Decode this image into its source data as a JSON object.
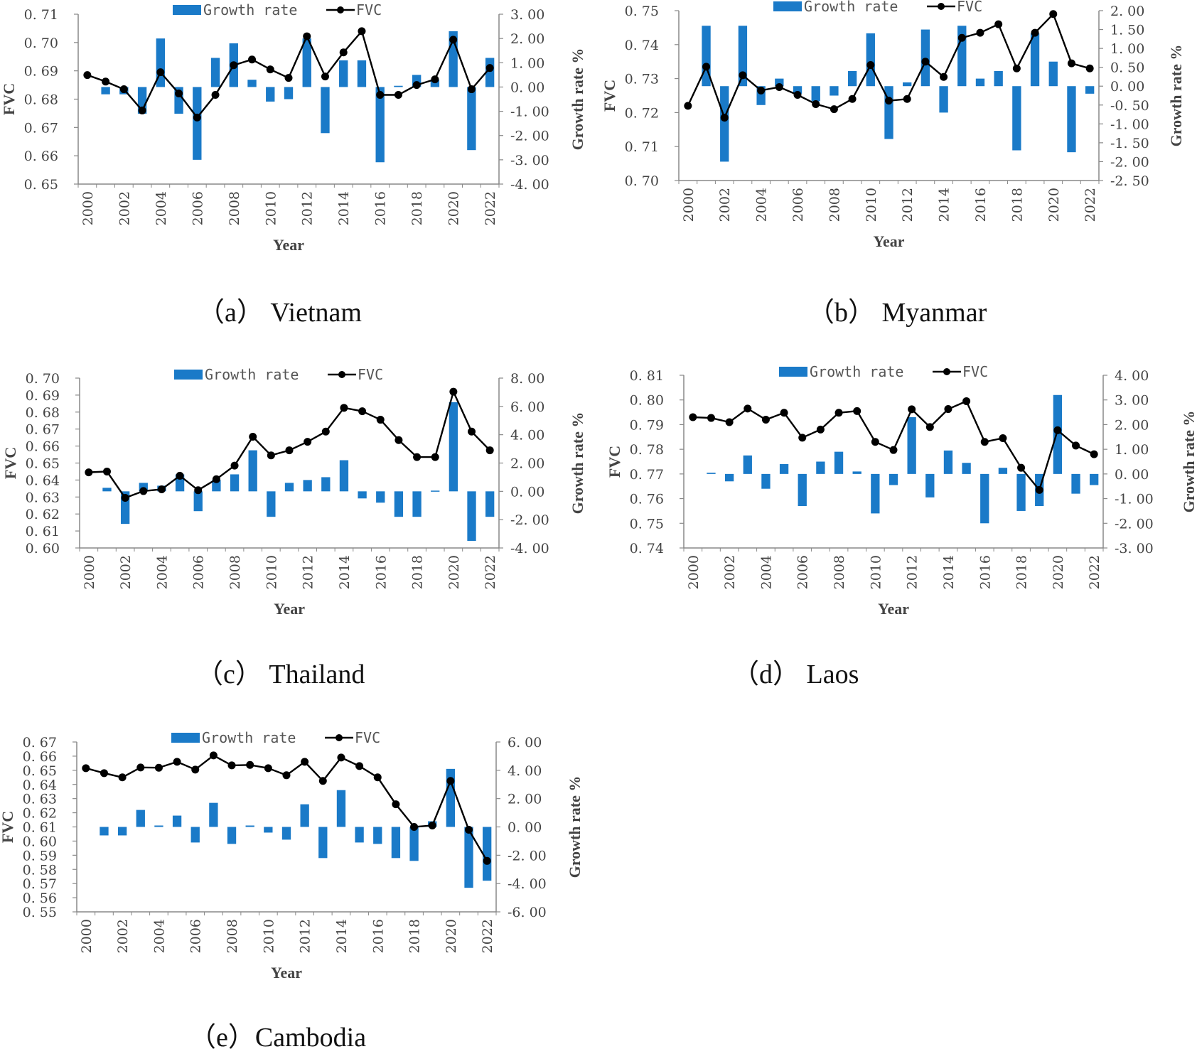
{
  "figure": {
    "legend_bar_label": "Growth rate",
    "legend_line_label": "FVC",
    "bar_color": "#1a7ac8",
    "line_color": "#000000"
  },
  "chart_data": [
    {
      "type": "bar+line",
      "caption": "（a） Vietnam",
      "xlabel": "Year",
      "ylabel": "FVC",
      "y2label": "Growth rate %",
      "x": [
        2000,
        2001,
        2002,
        2003,
        2004,
        2005,
        2006,
        2007,
        2008,
        2009,
        2010,
        2011,
        2012,
        2013,
        2014,
        2015,
        2016,
        2017,
        2018,
        2019,
        2020,
        2021,
        2022
      ],
      "x_ticks": [
        "2000",
        "2002",
        "2004",
        "2006",
        "2008",
        "2010",
        "2012",
        "2014",
        "2016",
        "2018",
        "2020",
        "2022"
      ],
      "ylim": [
        0.65,
        0.71
      ],
      "y_ticks": [
        "0. 65",
        "0. 66",
        "0. 67",
        "0. 68",
        "0. 69",
        "0. 70",
        "0. 71"
      ],
      "y2lim": [
        -4.0,
        3.0
      ],
      "y2_ticks": [
        "-4. 00",
        "-3. 00",
        "-2. 00",
        "-1. 00",
        "0. 00",
        "1. 00",
        "2. 00",
        "3. 00"
      ],
      "series": [
        {
          "name": "Growth rate",
          "type": "bar",
          "values": [
            null,
            -0.3,
            -0.3,
            -1.1,
            2.0,
            -1.1,
            -3.0,
            1.2,
            1.8,
            0.3,
            -0.6,
            -0.5,
            2.0,
            -1.9,
            1.1,
            1.1,
            -3.1,
            0.05,
            0.5,
            0.3,
            2.3,
            -2.6,
            1.2
          ]
        },
        {
          "name": "FVC",
          "type": "line",
          "values": [
            0.6885,
            0.6862,
            0.6835,
            0.676,
            0.6895,
            0.682,
            0.6735,
            0.6815,
            0.692,
            0.694,
            0.6905,
            0.6875,
            0.7022,
            0.688,
            0.6965,
            0.704,
            0.6815,
            0.6815,
            0.685,
            0.687,
            0.701,
            0.6835,
            0.691
          ]
        }
      ]
    },
    {
      "type": "bar+line",
      "caption": "（b） Myanmar",
      "xlabel": "Year",
      "ylabel": "FVC",
      "y2label": "Growth rate %",
      "x": [
        2000,
        2001,
        2002,
        2003,
        2004,
        2005,
        2006,
        2007,
        2008,
        2009,
        2010,
        2011,
        2012,
        2013,
        2014,
        2015,
        2016,
        2017,
        2018,
        2019,
        2020,
        2021,
        2022
      ],
      "x_ticks": [
        "2000",
        "2002",
        "2004",
        "2006",
        "2008",
        "2010",
        "2012",
        "2014",
        "2016",
        "2018",
        "2020",
        "2022"
      ],
      "ylim": [
        0.7,
        0.75
      ],
      "y_ticks": [
        "0. 70",
        "0. 71",
        "0. 72",
        "0. 73",
        "0. 74",
        "0. 75"
      ],
      "y2lim": [
        -2.5,
        2.0
      ],
      "y2_ticks": [
        "-2. 50",
        "-2. 00",
        "-1. 50",
        "-1. 00",
        "-0. 50",
        "0. 00",
        "0. 50",
        "1. 00",
        "1. 50",
        "2. 00"
      ],
      "series": [
        {
          "name": "Growth rate",
          "type": "bar",
          "values": [
            null,
            1.6,
            -2.0,
            1.6,
            -0.5,
            0.2,
            -0.2,
            -0.4,
            -0.25,
            0.4,
            1.4,
            -1.4,
            0.1,
            1.5,
            -0.7,
            1.6,
            0.2,
            0.4,
            -1.7,
            1.4,
            0.65,
            -1.75,
            -0.2
          ]
        },
        {
          "name": "FVC",
          "type": "line",
          "values": [
            0.722,
            0.7335,
            0.7185,
            0.731,
            0.7265,
            0.7275,
            0.7252,
            0.7225,
            0.721,
            0.724,
            0.734,
            0.7235,
            0.724,
            0.735,
            0.7305,
            0.742,
            0.7435,
            0.746,
            0.733,
            0.7435,
            0.749,
            0.7345,
            0.733
          ]
        }
      ]
    },
    {
      "type": "bar+line",
      "caption": "（c） Thailand",
      "xlabel": "Year",
      "ylabel": "FVC",
      "y2label": "Growth rate %",
      "x": [
        2000,
        2001,
        2002,
        2003,
        2004,
        2005,
        2006,
        2007,
        2008,
        2009,
        2010,
        2011,
        2012,
        2013,
        2014,
        2015,
        2016,
        2017,
        2018,
        2019,
        2020,
        2021,
        2022
      ],
      "x_ticks": [
        "2000",
        "2002",
        "2004",
        "2006",
        "2008",
        "2010",
        "2012",
        "2014",
        "2016",
        "2018",
        "2020",
        "2022"
      ],
      "ylim": [
        0.6,
        0.7
      ],
      "y_ticks": [
        "0. 60",
        "0. 61",
        "0. 62",
        "0. 63",
        "0. 64",
        "0. 65",
        "0. 66",
        "0. 67",
        "0. 68",
        "0. 69",
        "0. 70"
      ],
      "y2lim": [
        -4.0,
        8.0
      ],
      "y2_ticks": [
        "-4. 00",
        "-2. 00",
        "0. 00",
        "2. 00",
        "4. 00",
        "6. 00",
        "8. 00"
      ],
      "series": [
        {
          "name": "Growth rate",
          "type": "bar",
          "values": [
            null,
            0.25,
            -2.3,
            0.6,
            0.4,
            1.2,
            -1.4,
            0.8,
            1.2,
            2.9,
            -1.8,
            0.6,
            0.8,
            1.0,
            2.2,
            -0.5,
            -0.8,
            -1.8,
            -1.8,
            0.05,
            6.3,
            -3.5,
            -1.8
          ]
        },
        {
          "name": "FVC",
          "type": "line",
          "values": [
            0.6445,
            0.645,
            0.6295,
            0.6335,
            0.6345,
            0.6425,
            0.634,
            0.6405,
            0.6485,
            0.6655,
            0.6545,
            0.6575,
            0.6625,
            0.6685,
            0.6825,
            0.6805,
            0.6755,
            0.6635,
            0.6535,
            0.6535,
            0.692,
            0.6685,
            0.6575
          ]
        }
      ]
    },
    {
      "type": "bar+line",
      "caption": "（d） Laos",
      "xlabel": "Year",
      "ylabel": "FVC",
      "y2label": "Growth rate %",
      "x": [
        2000,
        2001,
        2002,
        2003,
        2004,
        2005,
        2006,
        2007,
        2008,
        2009,
        2010,
        2011,
        2012,
        2013,
        2014,
        2015,
        2016,
        2017,
        2018,
        2019,
        2020,
        2021,
        2022
      ],
      "x_ticks": [
        "2000",
        "2002",
        "2004",
        "2006",
        "2008",
        "2010",
        "2012",
        "2014",
        "2016",
        "2018",
        "2020",
        "2022"
      ],
      "ylim": [
        0.74,
        0.81
      ],
      "y_ticks": [
        "0. 74",
        "0. 75",
        "0. 76",
        "0. 77",
        "0. 78",
        "0. 79",
        "0. 80",
        "0. 81"
      ],
      "y2lim": [
        -3.0,
        4.0
      ],
      "y2_ticks": [
        "-3. 00",
        "-2. 00",
        "-1. 00",
        "0. 00",
        "1. 00",
        "2. 00",
        "3. 00",
        "4. 00"
      ],
      "series": [
        {
          "name": "Growth rate",
          "type": "bar",
          "values": [
            null,
            0.05,
            -0.3,
            0.75,
            -0.6,
            0.4,
            -1.3,
            0.5,
            0.9,
            0.1,
            -1.6,
            -0.45,
            2.3,
            -0.95,
            0.95,
            0.45,
            -2.0,
            0.25,
            -1.5,
            -1.3,
            3.2,
            -0.8,
            -0.45
          ]
        },
        {
          "name": "FVC",
          "type": "line",
          "values": [
            0.793,
            0.7927,
            0.791,
            0.7965,
            0.792,
            0.7948,
            0.7847,
            0.788,
            0.7948,
            0.7955,
            0.783,
            0.7797,
            0.7962,
            0.789,
            0.7963,
            0.7995,
            0.783,
            0.7845,
            0.7725,
            0.7635,
            0.7877,
            0.7815,
            0.778
          ]
        }
      ]
    },
    {
      "type": "bar+line",
      "caption": "（e）Cambodia",
      "xlabel": "Year",
      "ylabel": "FVC",
      "y2label": "Growth rate %",
      "x": [
        2000,
        2001,
        2002,
        2003,
        2004,
        2005,
        2006,
        2007,
        2008,
        2009,
        2010,
        2011,
        2012,
        2013,
        2014,
        2015,
        2016,
        2017,
        2018,
        2019,
        2020,
        2021,
        2022
      ],
      "x_ticks": [
        "2000",
        "2002",
        "2004",
        "2006",
        "2008",
        "2010",
        "2012",
        "2014",
        "2016",
        "2018",
        "2020",
        "2022"
      ],
      "ylim": [
        0.55,
        0.67
      ],
      "y_ticks": [
        "0. 55",
        "0. 56",
        "0. 57",
        "0. 58",
        "0. 59",
        "0. 60",
        "0. 61",
        "0. 62",
        "0. 63",
        "0. 64",
        "0. 65",
        "0. 66",
        "0. 67"
      ],
      "y2lim": [
        -6.0,
        6.0
      ],
      "y2_ticks": [
        "-6. 00",
        "-4. 00",
        "-2. 00",
        "0. 00",
        "2. 00",
        "4. 00",
        "6. 00"
      ],
      "series": [
        {
          "name": "Growth rate",
          "type": "bar",
          "values": [
            null,
            -0.6,
            -0.6,
            1.2,
            0.1,
            0.8,
            -1.1,
            1.7,
            -1.2,
            0.1,
            -0.4,
            -0.9,
            1.6,
            -2.2,
            2.6,
            -1.1,
            -1.2,
            -2.2,
            -2.4,
            0.4,
            4.1,
            -4.3,
            -3.8
          ]
        },
        {
          "name": "FVC",
          "type": "line",
          "values": [
            0.6515,
            0.648,
            0.645,
            0.652,
            0.6518,
            0.656,
            0.6505,
            0.6605,
            0.6535,
            0.6538,
            0.6515,
            0.6465,
            0.656,
            0.6425,
            0.659,
            0.653,
            0.645,
            0.626,
            0.61,
            0.611,
            0.6425,
            0.608,
            0.586
          ]
        }
      ]
    }
  ]
}
